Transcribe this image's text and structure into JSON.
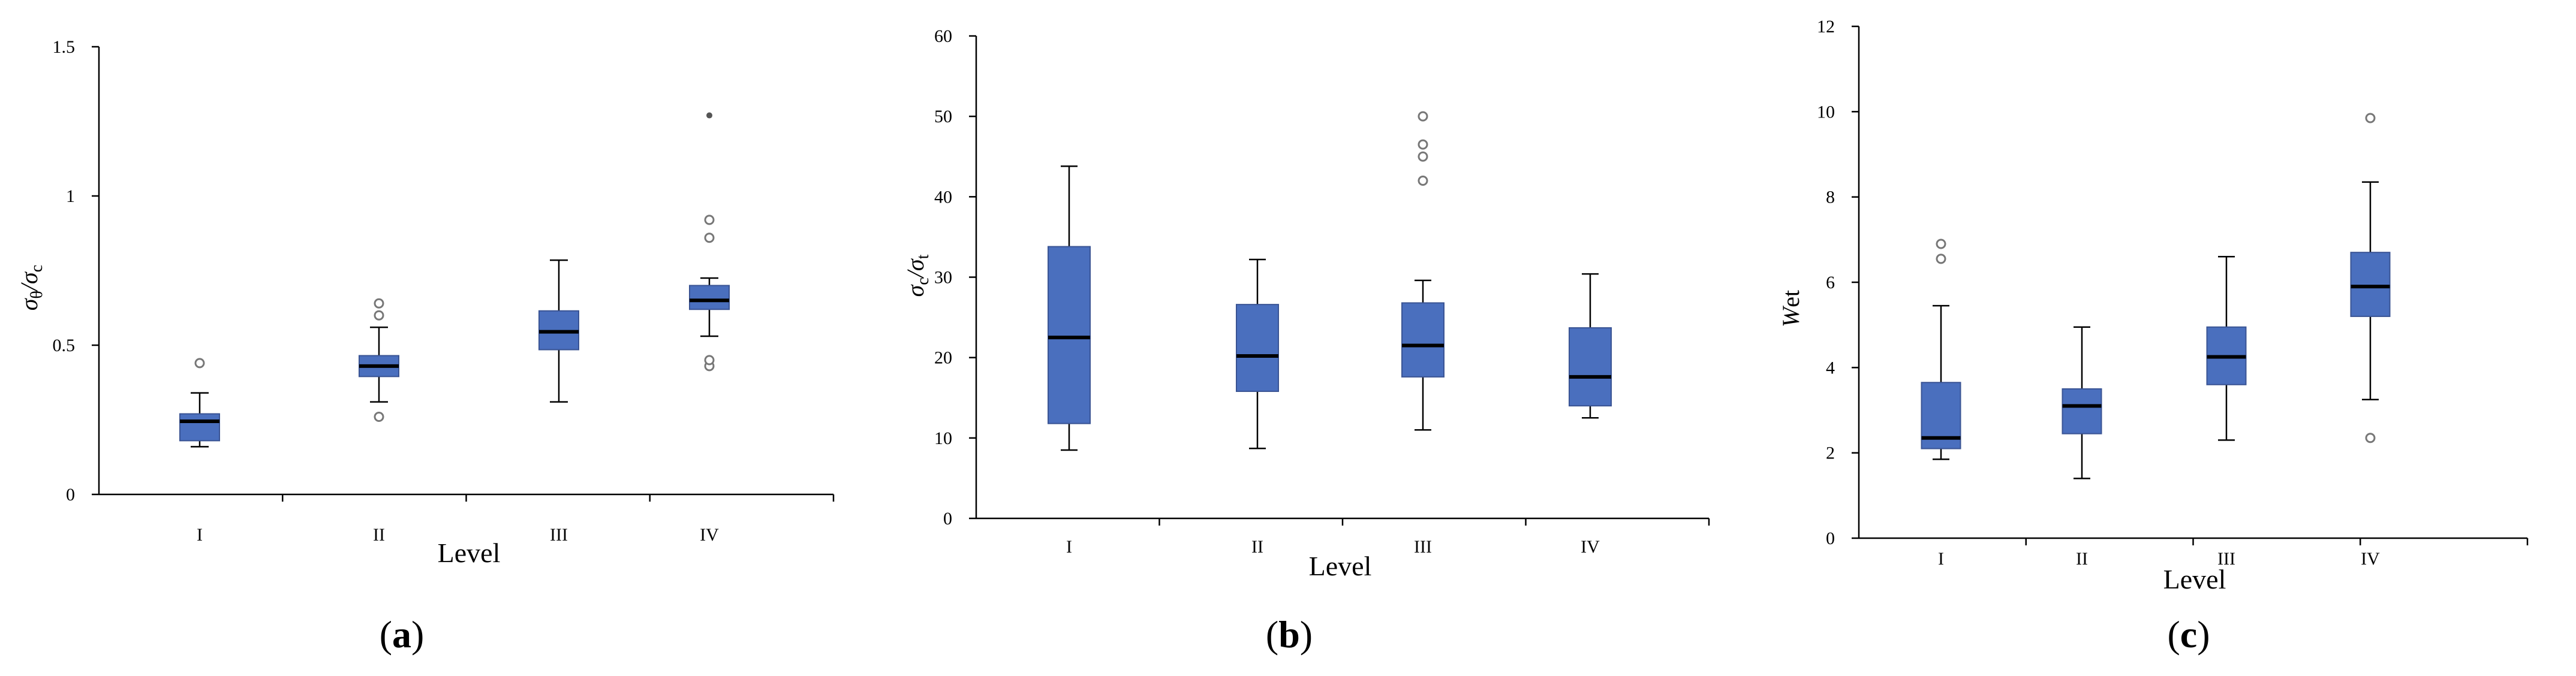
{
  "chart_data": [
    {
      "type": "box",
      "panel": "a",
      "caption": "a",
      "xlabel": "Level",
      "ylabel": "σθ/σc",
      "ylabel_parts": [
        "σ",
        "θ",
        "/",
        "σ",
        "c"
      ],
      "categories": [
        "I",
        "II",
        "III",
        "IV"
      ],
      "ylim": [
        0,
        1.5
      ],
      "yticks": [
        0,
        0.5,
        1,
        1.5
      ],
      "ytick_labels": [
        "0",
        "0.5",
        "1",
        "1.5"
      ],
      "boxes": [
        {
          "category": "I",
          "whisker_low": 0.16,
          "q1": 0.18,
          "median": 0.245,
          "q3": 0.27,
          "whisker_high": 0.34,
          "outliers": [
            0.44
          ],
          "extremes": []
        },
        {
          "category": "II",
          "whisker_low": 0.31,
          "q1": 0.395,
          "median": 0.43,
          "q3": 0.465,
          "whisker_high": 0.56,
          "outliers": [
            0.26,
            0.6,
            0.64
          ],
          "extremes": []
        },
        {
          "category": "III",
          "whisker_low": 0.31,
          "q1": 0.485,
          "median": 0.545,
          "q3": 0.615,
          "whisker_high": 0.785,
          "outliers": [],
          "extremes": []
        },
        {
          "category": "IV",
          "whisker_low": 0.53,
          "q1": 0.62,
          "median": 0.65,
          "q3": 0.7,
          "whisker_high": 0.725,
          "outliers": [
            0.43,
            0.45,
            0.86,
            0.92
          ],
          "extremes": [
            1.27
          ]
        }
      ]
    },
    {
      "type": "box",
      "panel": "b",
      "caption": "b",
      "xlabel": "Level",
      "ylabel": "σc/σt",
      "ylabel_parts": [
        "σ",
        "c",
        "/",
        "σ",
        "t"
      ],
      "categories": [
        "I",
        "II",
        "III",
        "IV"
      ],
      "ylim": [
        0,
        60
      ],
      "yticks": [
        0,
        10,
        20,
        30,
        40,
        50,
        60
      ],
      "ytick_labels": [
        "0",
        "10",
        "20",
        "30",
        "40",
        "50",
        "60"
      ],
      "boxes": [
        {
          "category": "I",
          "whisker_low": 8.5,
          "q1": 11.8,
          "median": 22.5,
          "q3": 33.8,
          "whisker_high": 43.8,
          "outliers": [],
          "extremes": []
        },
        {
          "category": "II",
          "whisker_low": 8.7,
          "q1": 15.8,
          "median": 20.2,
          "q3": 26.6,
          "whisker_high": 32.2,
          "outliers": [],
          "extremes": []
        },
        {
          "category": "III",
          "whisker_low": 11.0,
          "q1": 17.6,
          "median": 21.5,
          "q3": 26.8,
          "whisker_high": 29.6,
          "outliers": [
            42.0,
            45.0,
            46.5,
            50.0
          ],
          "extremes": []
        },
        {
          "category": "IV",
          "whisker_low": 12.5,
          "q1": 14.0,
          "median": 17.6,
          "q3": 23.7,
          "whisker_high": 30.4,
          "outliers": [],
          "extremes": []
        }
      ]
    },
    {
      "type": "box",
      "panel": "c",
      "caption": "c",
      "xlabel": "Level",
      "ylabel": "Wet",
      "ylabel_parts": [
        "W",
        "et"
      ],
      "categories": [
        "I",
        "II",
        "III",
        "IV"
      ],
      "ylim": [
        0,
        12
      ],
      "yticks": [
        0,
        2,
        4,
        6,
        8,
        10,
        12
      ],
      "ytick_labels": [
        "0",
        "2",
        "4",
        "6",
        "8",
        "10",
        "12"
      ],
      "boxes": [
        {
          "category": "I",
          "whisker_low": 1.85,
          "q1": 2.1,
          "median": 2.35,
          "q3": 3.65,
          "whisker_high": 5.45,
          "outliers": [
            6.55,
            6.9
          ],
          "extremes": []
        },
        {
          "category": "II",
          "whisker_low": 1.4,
          "q1": 2.45,
          "median": 3.1,
          "q3": 3.5,
          "whisker_high": 4.95,
          "outliers": [],
          "extremes": []
        },
        {
          "category": "III",
          "whisker_low": 2.3,
          "q1": 3.6,
          "median": 4.25,
          "q3": 4.95,
          "whisker_high": 6.6,
          "outliers": [],
          "extremes": []
        },
        {
          "category": "IV",
          "whisker_low": 3.25,
          "q1": 5.2,
          "median": 5.9,
          "q3": 6.7,
          "whisker_high": 8.35,
          "outliers": [
            2.35,
            9.85
          ],
          "extremes": []
        }
      ]
    }
  ]
}
